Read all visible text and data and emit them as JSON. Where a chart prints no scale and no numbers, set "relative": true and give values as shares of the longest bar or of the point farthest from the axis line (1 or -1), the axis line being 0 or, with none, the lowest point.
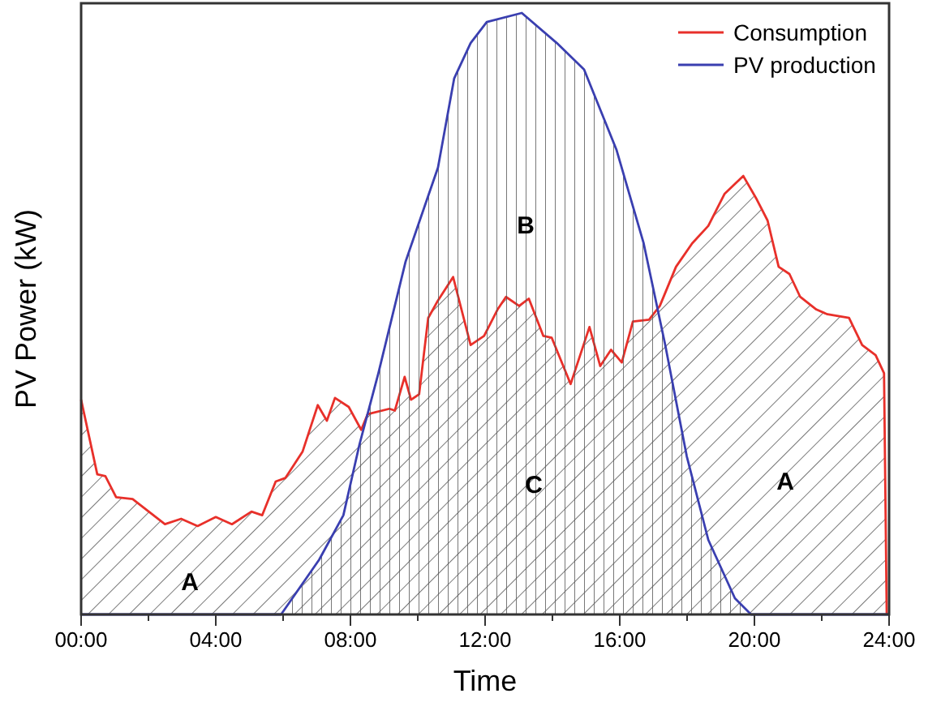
{
  "chart_data": {
    "type": "area",
    "relative": true,
    "xlabel": "Time",
    "ylabel": "PV Power (kW)",
    "legend": "top right",
    "xlim": [
      0,
      24
    ],
    "xticks": [
      {
        "value": 0,
        "label": "00:00"
      },
      {
        "value": 2,
        "label": null
      },
      {
        "value": 4,
        "label": "04:00"
      },
      {
        "value": 6,
        "label": null
      },
      {
        "value": 8,
        "label": "08:00"
      },
      {
        "value": 10,
        "label": null
      },
      {
        "value": 12,
        "label": "12:00"
      },
      {
        "value": 14,
        "label": null
      },
      {
        "value": 16,
        "label": "16:00"
      },
      {
        "value": 18,
        "label": null
      },
      {
        "value": 20,
        "label": "20:00"
      },
      {
        "value": 22,
        "label": null
      },
      {
        "value": 24,
        "label": "24:00"
      }
    ],
    "series": [
      {
        "name": "Consumption",
        "color": "#e8302a",
        "x": [
          0,
          0.48,
          0.72,
          1.04,
          1.53,
          2.49,
          2.97,
          3.46,
          4.0,
          4.48,
          5.06,
          5.38,
          5.78,
          6.07,
          6.58,
          7.03,
          7.3,
          7.54,
          7.95,
          8.32,
          8.51,
          9.16,
          9.32,
          9.61,
          9.8,
          10.04,
          10.31,
          10.6,
          11.05,
          11.57,
          11.97,
          12.37,
          12.62,
          13.01,
          13.3,
          13.73,
          13.98,
          14.54,
          15.1,
          15.42,
          15.74,
          16.06,
          16.39,
          16.87,
          17.19,
          17.67,
          18.15,
          18.63,
          19.11,
          19.67,
          20.07,
          20.39,
          20.72,
          21.04,
          21.36,
          21.84,
          22.17,
          22.81,
          23.2,
          23.6,
          23.85,
          23.93
        ],
        "values": [
          0.357,
          0.233,
          0.23,
          0.195,
          0.192,
          0.15,
          0.159,
          0.147,
          0.162,
          0.15,
          0.171,
          0.165,
          0.221,
          0.227,
          0.271,
          0.348,
          0.322,
          0.36,
          0.345,
          0.307,
          0.333,
          0.342,
          0.339,
          0.395,
          0.357,
          0.366,
          0.493,
          0.522,
          0.561,
          0.448,
          0.463,
          0.507,
          0.528,
          0.513,
          0.525,
          0.463,
          0.46,
          0.383,
          0.478,
          0.413,
          0.44,
          0.419,
          0.487,
          0.49,
          0.513,
          0.578,
          0.617,
          0.646,
          0.699,
          0.729,
          0.69,
          0.655,
          0.578,
          0.566,
          0.528,
          0.507,
          0.499,
          0.493,
          0.448,
          0.431,
          0.401,
          0
        ]
      },
      {
        "name": "PV production",
        "color": "#3a3fb0",
        "x": [
          0,
          5.94,
          7.07,
          7.79,
          8.27,
          8.83,
          9.64,
          10.6,
          11.08,
          11.57,
          12.05,
          13.09,
          14.13,
          14.94,
          15.9,
          16.71,
          17.35,
          17.99,
          18.63,
          19.42,
          19.9,
          24
        ],
        "values": [
          0,
          0,
          0.091,
          0.165,
          0.283,
          0.401,
          0.587,
          0.743,
          0.891,
          0.95,
          0.985,
          1,
          0.95,
          0.906,
          0.773,
          0.617,
          0.448,
          0.263,
          0.124,
          0.027,
          0,
          0
        ]
      }
    ],
    "annotations": [
      "A",
      "B",
      "C",
      "A"
    ]
  }
}
